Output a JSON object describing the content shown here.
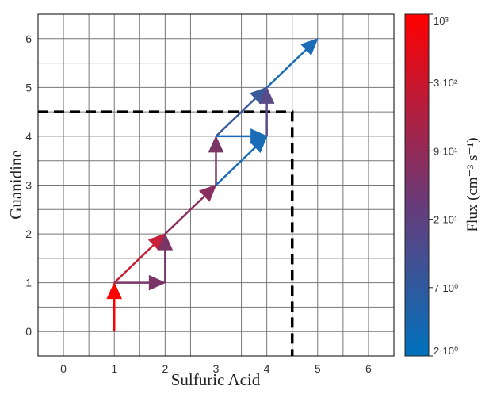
{
  "chart_data": {
    "type": "quiver",
    "xlabel": "Sulfuric Acid",
    "ylabel": "Guanidine",
    "xlim": [
      -0.5,
      6.5
    ],
    "ylim": [
      -0.5,
      6.5
    ],
    "xticks": [
      "0",
      "1",
      "2",
      "3",
      "4",
      "5",
      "6"
    ],
    "yticks": [
      "0",
      "1",
      "2",
      "3",
      "4",
      "5",
      "6"
    ],
    "grid": true,
    "threshold": {
      "x": 4.5,
      "y": 4.5,
      "style": "dashed",
      "color": "#000000"
    },
    "arrows": [
      {
        "from": [
          1,
          0
        ],
        "to": [
          1,
          1
        ],
        "flux_color": "#ff0000"
      },
      {
        "from": [
          1,
          1
        ],
        "to": [
          2,
          2
        ],
        "flux_color": "#c8203a"
      },
      {
        "from": [
          1,
          1
        ],
        "to": [
          2,
          1
        ],
        "flux_color": "#7a3466"
      },
      {
        "from": [
          2,
          1
        ],
        "to": [
          2,
          2
        ],
        "flux_color": "#7a3466"
      },
      {
        "from": [
          2,
          2
        ],
        "to": [
          3,
          3
        ],
        "flux_color": "#8a2e60"
      },
      {
        "from": [
          3,
          3
        ],
        "to": [
          3,
          4
        ],
        "flux_color": "#7a3466"
      },
      {
        "from": [
          3,
          3
        ],
        "to": [
          4,
          4
        ],
        "flux_color": "#1a6cb6"
      },
      {
        "from": [
          3,
          4
        ],
        "to": [
          4,
          5
        ],
        "flux_color": "#3a5a9a"
      },
      {
        "from": [
          3,
          4
        ],
        "to": [
          4,
          4
        ],
        "flux_color": "#1a6cb6"
      },
      {
        "from": [
          4,
          4
        ],
        "to": [
          4,
          5
        ],
        "flux_color": "#5a4a88"
      },
      {
        "from": [
          4,
          5
        ],
        "to": [
          5,
          6
        ],
        "flux_color": "#1a6cb6"
      }
    ],
    "colorbar": {
      "label": "Flux (cm⁻³ s⁻¹)",
      "ticks": [
        "10³",
        "3·10²",
        "9·10¹",
        "2·10¹",
        "7·10⁰",
        "2·10⁰"
      ],
      "colors": {
        "top": "#ff0000",
        "bottom": "#0072bd"
      }
    }
  }
}
